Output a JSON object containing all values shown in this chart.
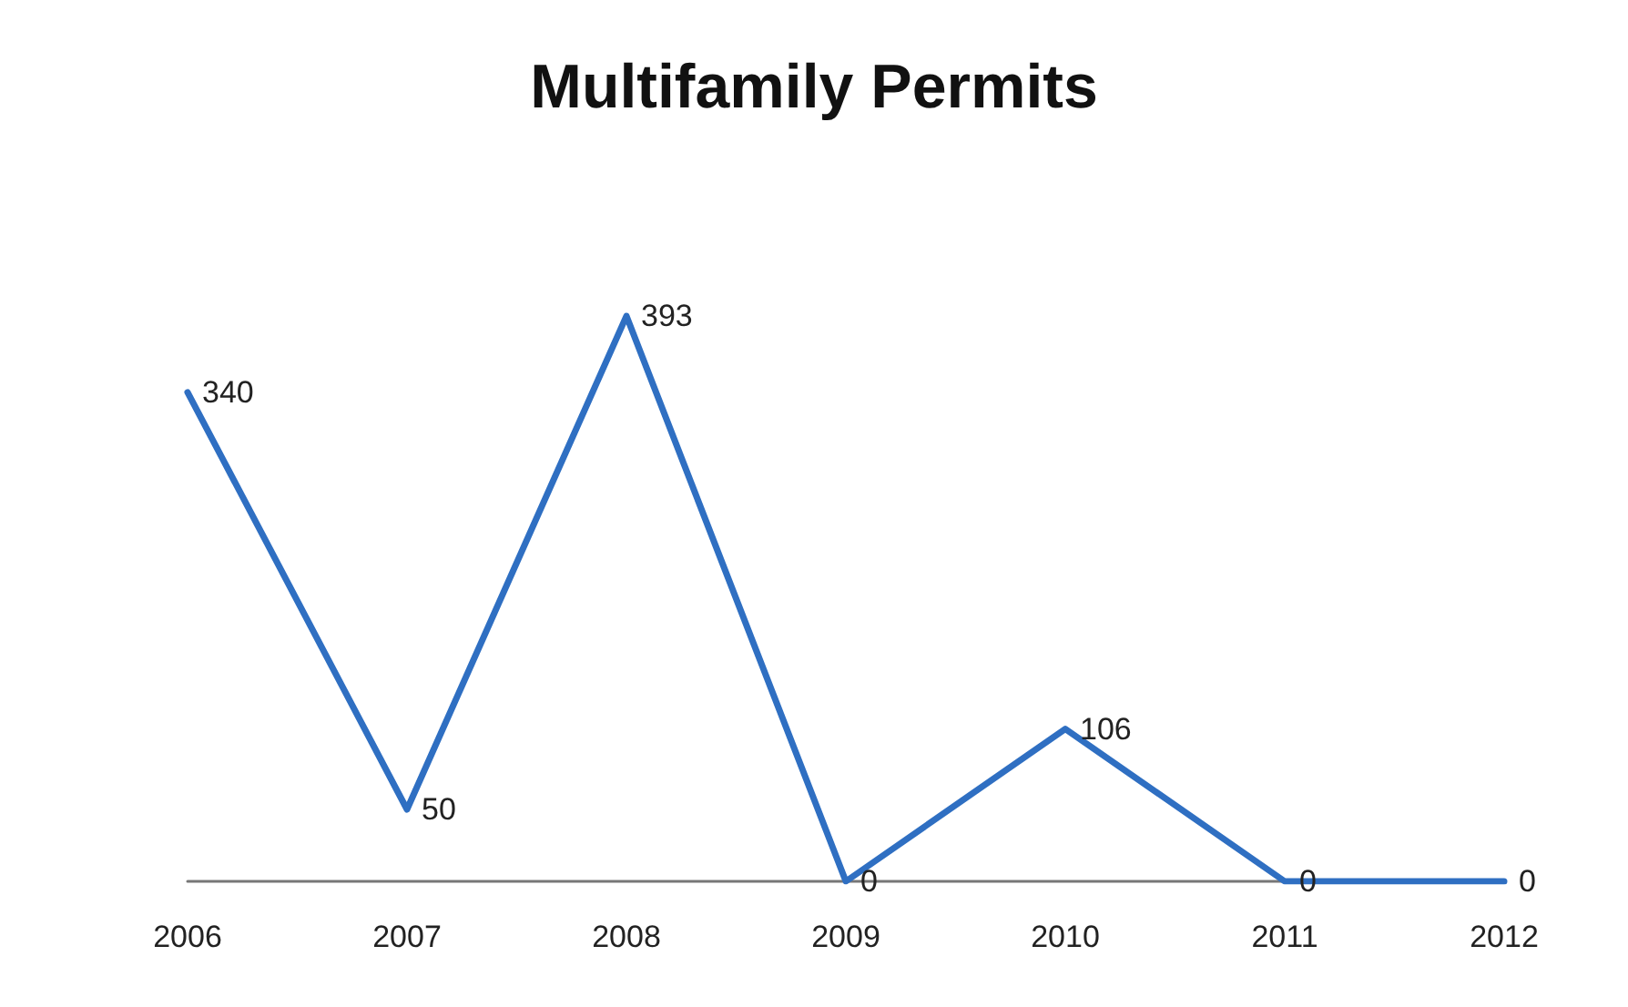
{
  "chart_data": {
    "type": "line",
    "title": "Multifamily Permits",
    "categories": [
      "2006",
      "2007",
      "2008",
      "2009",
      "2010",
      "2011",
      "2012"
    ],
    "series": [
      {
        "color": "#2f6fc2",
        "values": [
          340,
          50,
          393,
          0,
          106,
          0,
          0
        ]
      }
    ],
    "data_labels": true,
    "tick_labels": "x",
    "grid": false,
    "marker": "none",
    "line_style": "solid"
  }
}
